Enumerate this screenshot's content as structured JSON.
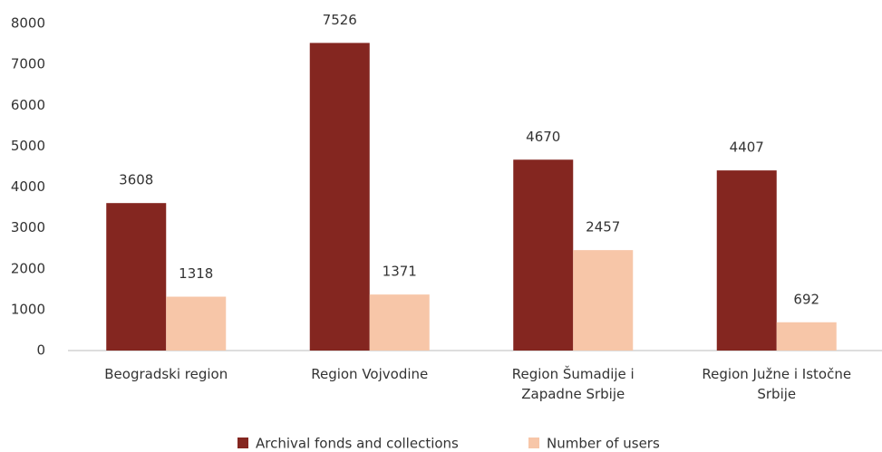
{
  "chart_data": {
    "type": "bar",
    "categories": [
      "Beogradski region",
      "Region Vojvodine",
      "Region Šumadije i Zapadne Srbije",
      "Region Južne i Istočne Srbije"
    ],
    "series": [
      {
        "name": "Archival fonds and collections",
        "color": "#842620",
        "values": [
          3608,
          7526,
          4670,
          4407
        ]
      },
      {
        "name": "Number of users",
        "color": "#f7c6a8",
        "values": [
          1318,
          1371,
          2457,
          692
        ]
      }
    ],
    "ylim": [
      0,
      8000
    ],
    "yticks": [
      0,
      1000,
      2000,
      3000,
      4000,
      5000,
      6000,
      7000,
      8000
    ],
    "grid": false,
    "legend": "bottom"
  }
}
